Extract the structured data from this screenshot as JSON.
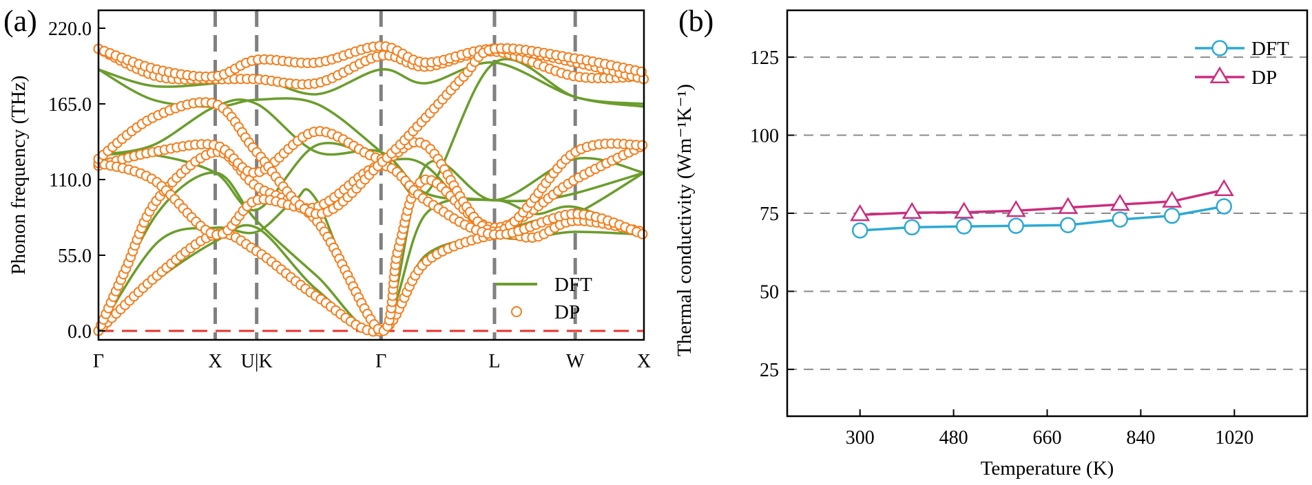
{
  "panels": {
    "a": {
      "label": "(a)"
    },
    "b": {
      "label": "(b)"
    }
  },
  "colors": {
    "dft_a": "#6a9d2b",
    "dp_a": "#f47c1a",
    "zero_line": "#e8332b",
    "vline": "#808080",
    "dft_b": "#2ba9d4",
    "dp_b": "#cc2d7e",
    "grid_b": "#8a8a8a",
    "axis": "#000000"
  },
  "chart_data": [
    {
      "type": "line",
      "title": "",
      "ylabel": "Phonon frequency (THz)",
      "xlabel": "",
      "ylim": [
        -6.5,
        233
      ],
      "yticks": [
        "0.0",
        "55.0",
        "110.0",
        "165.0",
        "220.0"
      ],
      "special_points": [
        {
          "label": "Γ",
          "pos": 0.0
        },
        {
          "label": "X",
          "pos": 0.214
        },
        {
          "label": "U|K",
          "pos": 0.29
        },
        {
          "label": "Γ",
          "pos": 0.518
        },
        {
          "label": "L",
          "pos": 0.726
        },
        {
          "label": "W",
          "pos": 0.874
        },
        {
          "label": "X",
          "pos": 1.0
        }
      ],
      "legend": {
        "position": "bottom-right",
        "entries": [
          "DFT",
          "DP"
        ]
      },
      "reference_line": {
        "y": 0,
        "style": "dashed"
      },
      "series": [
        {
          "name": "DFT",
          "style": "line",
          "branches": [
            [
              [
                0,
                0
              ],
              [
                0.107,
                85
              ],
              [
                0.214,
                115
              ],
              [
                0.29,
                80
              ],
              [
                0.4,
                40
              ],
              [
                0.518,
                0
              ],
              [
                0.6,
                85
              ],
              [
                0.726,
                95
              ],
              [
                0.8,
                85
              ],
              [
                0.874,
                90
              ],
              [
                1.0,
                70
              ]
            ],
            [
              [
                0,
                0
              ],
              [
                0.1,
                35
              ],
              [
                0.214,
                65
              ],
              [
                0.29,
                75
              ],
              [
                0.4,
                30
              ],
              [
                0.518,
                0
              ],
              [
                0.6,
                55
              ],
              [
                0.726,
                70
              ],
              [
                0.8,
                80
              ],
              [
                0.874,
                85
              ],
              [
                1.0,
                115
              ]
            ],
            [
              [
                0,
                0
              ],
              [
                0.11,
                65
              ],
              [
                0.214,
                75
              ],
              [
                0.29,
                72
              ],
              [
                0.36,
                95
              ],
              [
                0.4,
                95
              ],
              [
                0.518,
                0
              ],
              [
                0.6,
                120
              ],
              [
                0.726,
                95
              ],
              [
                0.874,
                125
              ],
              [
                1.0,
                115
              ]
            ],
            [
              [
                0,
                128
              ],
              [
                0.1,
                128
              ],
              [
                0.214,
                115
              ],
              [
                0.29,
                88
              ],
              [
                0.4,
                135
              ],
              [
                0.518,
                125
              ],
              [
                0.6,
                120
              ],
              [
                0.726,
                70
              ],
              [
                0.874,
                72
              ],
              [
                1.0,
                70
              ]
            ],
            [
              [
                0,
                128
              ],
              [
                0.1,
                135
              ],
              [
                0.214,
                163
              ],
              [
                0.29,
                165
              ],
              [
                0.4,
                130
              ],
              [
                0.518,
                130
              ],
              [
                0.6,
                100
              ],
              [
                0.726,
                95
              ],
              [
                0.8,
                95
              ],
              [
                0.874,
                100
              ],
              [
                1.0,
                115
              ]
            ],
            [
              [
                0,
                190
              ],
              [
                0.1,
                168
              ],
              [
                0.214,
                163
              ],
              [
                0.29,
                168
              ],
              [
                0.4,
                165
              ],
              [
                0.518,
                130
              ],
              [
                0.6,
                100
              ],
              [
                0.726,
                195
              ],
              [
                0.874,
                170
              ],
              [
                1.0,
                163
              ]
            ],
            [
              [
                0,
                190
              ],
              [
                0.1,
                178
              ],
              [
                0.214,
                180
              ],
              [
                0.29,
                184
              ],
              [
                0.4,
                172
              ],
              [
                0.518,
                190
              ],
              [
                0.6,
                180
              ],
              [
                0.726,
                195
              ],
              [
                0.874,
                170
              ],
              [
                1.0,
                165
              ]
            ]
          ]
        },
        {
          "name": "DP",
          "style": "markers",
          "branches": [
            [
              [
                0,
                0
              ],
              [
                0.107,
                40
              ],
              [
                0.214,
                70
              ],
              [
                0.29,
                58
              ],
              [
                0.4,
                25
              ],
              [
                0.518,
                0
              ],
              [
                0.6,
                50
              ],
              [
                0.726,
                70
              ],
              [
                0.8,
                68
              ],
              [
                0.874,
                80
              ],
              [
                1.0,
                72
              ]
            ],
            [
              [
                0,
                0
              ],
              [
                0.05,
                45
              ],
              [
                0.107,
                95
              ],
              [
                0.214,
                130
              ],
              [
                0.29,
                105
              ],
              [
                0.4,
                80
              ],
              [
                0.518,
                0
              ],
              [
                0.55,
                60
              ],
              [
                0.6,
                110
              ],
              [
                0.726,
                75
              ],
              [
                0.874,
                110
              ],
              [
                1.0,
                135
              ]
            ],
            [
              [
                0,
                120
              ],
              [
                0.1,
                130
              ],
              [
                0.214,
                135
              ],
              [
                0.29,
                115
              ],
              [
                0.4,
                145
              ],
              [
                0.518,
                125
              ],
              [
                0.6,
                135
              ],
              [
                0.726,
                72
              ],
              [
                0.874,
                130
              ],
              [
                1.0,
                135
              ]
            ],
            [
              [
                0,
                122
              ],
              [
                0.1,
                110
              ],
              [
                0.214,
                70
              ],
              [
                0.29,
                95
              ],
              [
                0.4,
                90
              ],
              [
                0.518,
                120
              ],
              [
                0.6,
                95
              ],
              [
                0.726,
                70
              ],
              [
                0.874,
                85
              ],
              [
                1.0,
                70
              ]
            ],
            [
              [
                0,
                205
              ],
              [
                0.107,
                185
              ],
              [
                0.214,
                183
              ],
              [
                0.29,
                183
              ],
              [
                0.4,
                180
              ],
              [
                0.518,
                200
              ],
              [
                0.6,
                192
              ],
              [
                0.726,
                203
              ],
              [
                0.874,
                185
              ],
              [
                1.0,
                185
              ]
            ],
            [
              [
                0,
                205
              ],
              [
                0.107,
                190
              ],
              [
                0.214,
                185
              ],
              [
                0.29,
                197
              ],
              [
                0.4,
                195
              ],
              [
                0.518,
                207
              ],
              [
                0.6,
                195
              ],
              [
                0.726,
                205
              ],
              [
                0.874,
                195
              ],
              [
                1.0,
                183
              ]
            ],
            [
              [
                0,
                125
              ],
              [
                0.1,
                155
              ],
              [
                0.214,
                165
              ],
              [
                0.29,
                130
              ],
              [
                0.4,
                85
              ],
              [
                0.518,
                122
              ],
              [
                0.6,
                155
              ],
              [
                0.67,
                185
              ],
              [
                0.726,
                205
              ],
              [
                0.874,
                198
              ],
              [
                1.0,
                188
              ]
            ]
          ]
        }
      ]
    },
    {
      "type": "line",
      "title": "",
      "xlabel": "Temperature (K)",
      "ylabel": "Thermal conductivity (Wm⁻¹K⁻¹)",
      "xlim": [
        160,
        1160
      ],
      "ylim": [
        10,
        140
      ],
      "xticks": [
        300,
        480,
        660,
        840,
        1020
      ],
      "yticks": [
        25,
        50,
        75,
        100,
        125
      ],
      "grid": "horizontal-dashed",
      "legend": {
        "position": "top-right",
        "entries": [
          "DFT",
          "DP"
        ]
      },
      "x": [
        300,
        400,
        500,
        600,
        700,
        800,
        900,
        1000
      ],
      "series": [
        {
          "name": "DFT",
          "marker": "circle",
          "values": [
            69.5,
            70.5,
            70.8,
            71.0,
            71.2,
            73.0,
            74.2,
            77.2
          ]
        },
        {
          "name": "DP",
          "marker": "triangle",
          "values": [
            74.5,
            75.2,
            75.3,
            75.8,
            76.8,
            77.8,
            78.8,
            82.5
          ]
        }
      ]
    }
  ]
}
